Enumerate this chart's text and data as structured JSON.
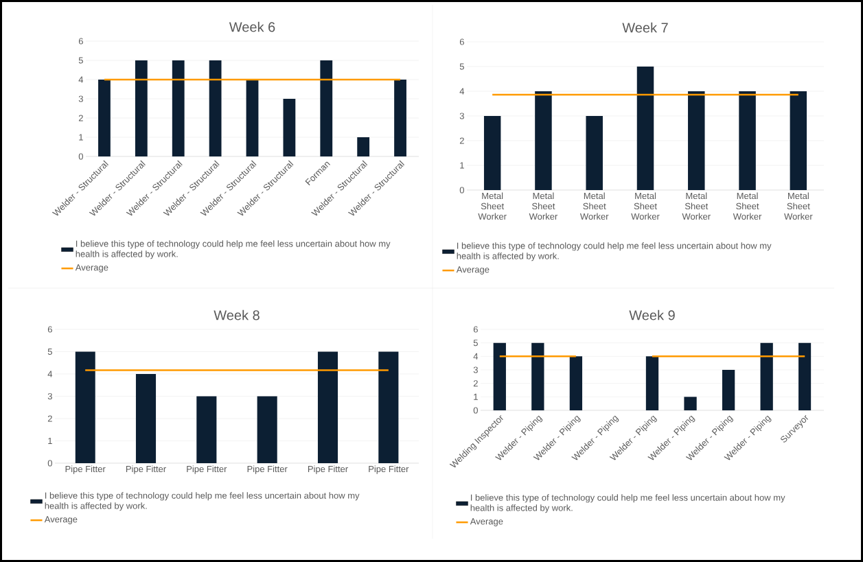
{
  "chart_data": [
    {
      "type": "bar",
      "title": "Week 6",
      "categories": [
        "Welder - Structural",
        "Welder - Structural",
        "Welder - Structural",
        "Welder - Structural",
        "Welder - Structural",
        "Welder - Structural",
        "Forman",
        "Welder - Structural",
        "Welder - Structural"
      ],
      "series": [
        {
          "name": "I believe this type of technology could help me feel less uncertain about how my health is affected by work.",
          "color": "#0c1f33",
          "values": [
            4,
            5,
            5,
            5,
            4,
            3,
            5,
            1,
            4
          ]
        },
        {
          "name": "Average",
          "type": "line",
          "color": "#ff9a00",
          "values": [
            4,
            4,
            4,
            4,
            4,
            4,
            4,
            4,
            4
          ]
        }
      ],
      "ylim": [
        0,
        6
      ],
      "yticks": [
        0,
        1,
        2,
        3,
        4,
        5,
        6
      ],
      "grid": "y",
      "legend": "bottom"
    },
    {
      "type": "bar",
      "title": "Week 7",
      "categories": [
        "Metal Sheet Worker",
        "Metal Sheet Worker",
        "Metal Sheet Worker",
        "Metal Sheet Worker",
        "Metal Sheet Worker",
        "Metal Sheet Worker",
        "Metal Sheet Worker"
      ],
      "series": [
        {
          "name": "I believe this type of technology could help me feel less uncertain about how my health is affected by work.",
          "color": "#0c1f33",
          "values": [
            3,
            4,
            3,
            5,
            4,
            4,
            4
          ]
        },
        {
          "name": "Average",
          "type": "line",
          "color": "#ff9a00",
          "values": [
            3.86,
            3.86,
            3.86,
            3.86,
            3.86,
            3.86,
            3.86
          ]
        }
      ],
      "ylim": [
        0,
        6
      ],
      "yticks": [
        0,
        1,
        2,
        3,
        4,
        5,
        6
      ],
      "grid": "y",
      "legend": "bottom"
    },
    {
      "type": "bar",
      "title": "Week 8",
      "categories": [
        "Pipe Fitter",
        "Pipe Fitter",
        "Pipe Fitter",
        "Pipe Fitter",
        "Pipe Fitter",
        "Pipe Fitter"
      ],
      "series": [
        {
          "name": "I believe this type of technology could help me feel less uncertain about how my health is affected by work.",
          "color": "#0c1f33",
          "values": [
            5,
            4,
            3,
            3,
            5,
            5
          ]
        },
        {
          "name": "Average",
          "type": "line",
          "color": "#ff9a00",
          "values": [
            4.17,
            4.17,
            4.17,
            4.17,
            4.17,
            4.17
          ]
        }
      ],
      "ylim": [
        0,
        6
      ],
      "yticks": [
        0,
        1,
        2,
        3,
        4,
        5,
        6
      ],
      "grid": "y",
      "legend": "bottom"
    },
    {
      "type": "bar",
      "title": "Week 9",
      "categories": [
        "Welding Inspector",
        "Welder - Piping",
        "Welder - Piping",
        "Welder - Piping",
        "Welder - Piping",
        "Welder - Piping",
        "Welder - Piping",
        "Welder - Piping",
        "Surveyor"
      ],
      "series": [
        {
          "name": "I believe this type of technology could help me feel less uncertain about how my health is affected by work.",
          "color": "#0c1f33",
          "values": [
            5,
            5,
            4,
            null,
            4,
            1,
            3,
            5,
            5
          ]
        },
        {
          "name": "Average",
          "type": "line",
          "color": "#ff9a00",
          "values": [
            4,
            4,
            4,
            null,
            4,
            4,
            4,
            4,
            4
          ]
        }
      ],
      "ylim": [
        0,
        6
      ],
      "yticks": [
        0,
        1,
        2,
        3,
        4,
        5,
        6
      ],
      "grid": "y",
      "legend": "bottom"
    }
  ]
}
